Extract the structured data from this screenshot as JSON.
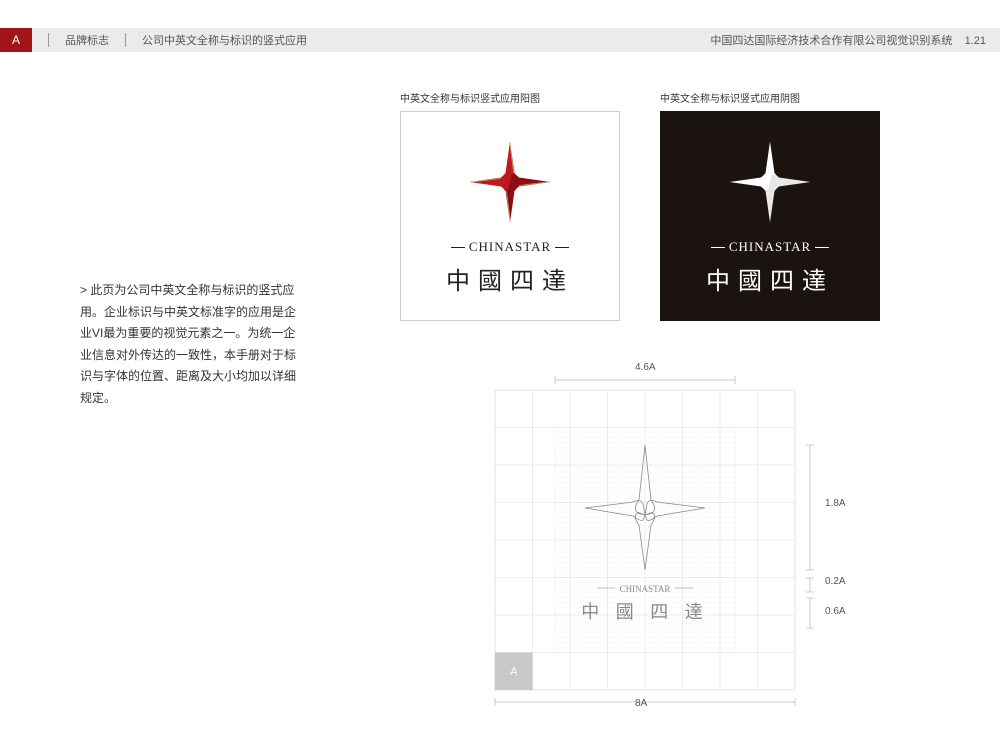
{
  "header": {
    "tab": "A",
    "section": "品牌标志",
    "title": "公司中英文全称与标识的竖式应用",
    "right_text": "中国四达国际经济技术合作有限公司视觉识别系统",
    "page_num": "1.21"
  },
  "description": {
    "arrow": ">",
    "text": "此页为公司中英文全称与标识的竖式应用。企业标识与中英文标准字的应用是企业VI最为重要的视觉元素之一。为统一企业信息对外传达的一致性，本手册对于标识与字体的位置、距离及大小均加以详细规定。"
  },
  "panels": {
    "light_label": "中英文全称与标识竖式应用阳图",
    "dark_label": "中英文全称与标识竖式应用阴图",
    "en_name": "CHINASTAR",
    "cn_name": "中國四達"
  },
  "logo_colors": {
    "red_primary": "#c01820",
    "red_dark": "#8a0f15",
    "gold": "#c9a458",
    "white": "#ffffff",
    "dark_bg": "#1a1310"
  },
  "grid": {
    "total_width": "8A",
    "inner_width": "4.6A",
    "star_height": "1.8A",
    "gap_height": "0.2A",
    "text_height": "0.6A",
    "grid_color": "#d0d0d0",
    "outline_color": "#888888",
    "cell_label": "A"
  }
}
